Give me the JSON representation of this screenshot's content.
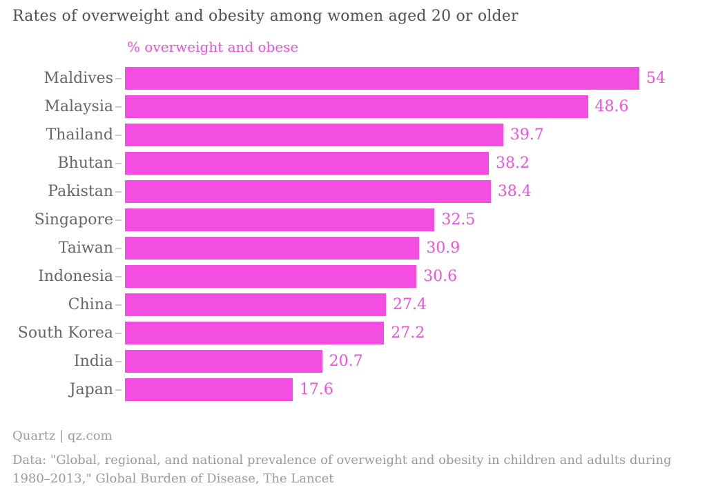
{
  "header": {
    "title": "Rates of overweight and obesity among women aged 20 or older",
    "legend": "% overweight and obese"
  },
  "chart_data": {
    "type": "bar",
    "orientation": "horizontal",
    "title": "Rates of overweight and obesity among women aged 20 or older",
    "series_label": "% overweight and obese",
    "categories": [
      "Maldives",
      "Malaysia",
      "Thailand",
      "Bhutan",
      "Pakistan",
      "Singapore",
      "Taiwan",
      "Indonesia",
      "China",
      "South Korea",
      "India",
      "Japan"
    ],
    "values": [
      54,
      48.6,
      39.7,
      38.2,
      38.4,
      32.5,
      30.9,
      30.6,
      27.4,
      27.2,
      20.7,
      17.6
    ],
    "xlabel": "",
    "ylabel": "",
    "xlim": [
      0,
      54
    ],
    "grid": false,
    "legend_position": "top-left-above-bars",
    "bar_color": "#f34de2",
    "label_color": "#666666",
    "value_label_color": "#f34de2"
  },
  "footer": {
    "source": "Quartz | qz.com",
    "note_line1": "Data: \"Global, regional, and national prevalence of overweight and obesity in children and adults during",
    "note_line2": "1980–2013,\" Global Burden of Disease, The Lancet"
  }
}
